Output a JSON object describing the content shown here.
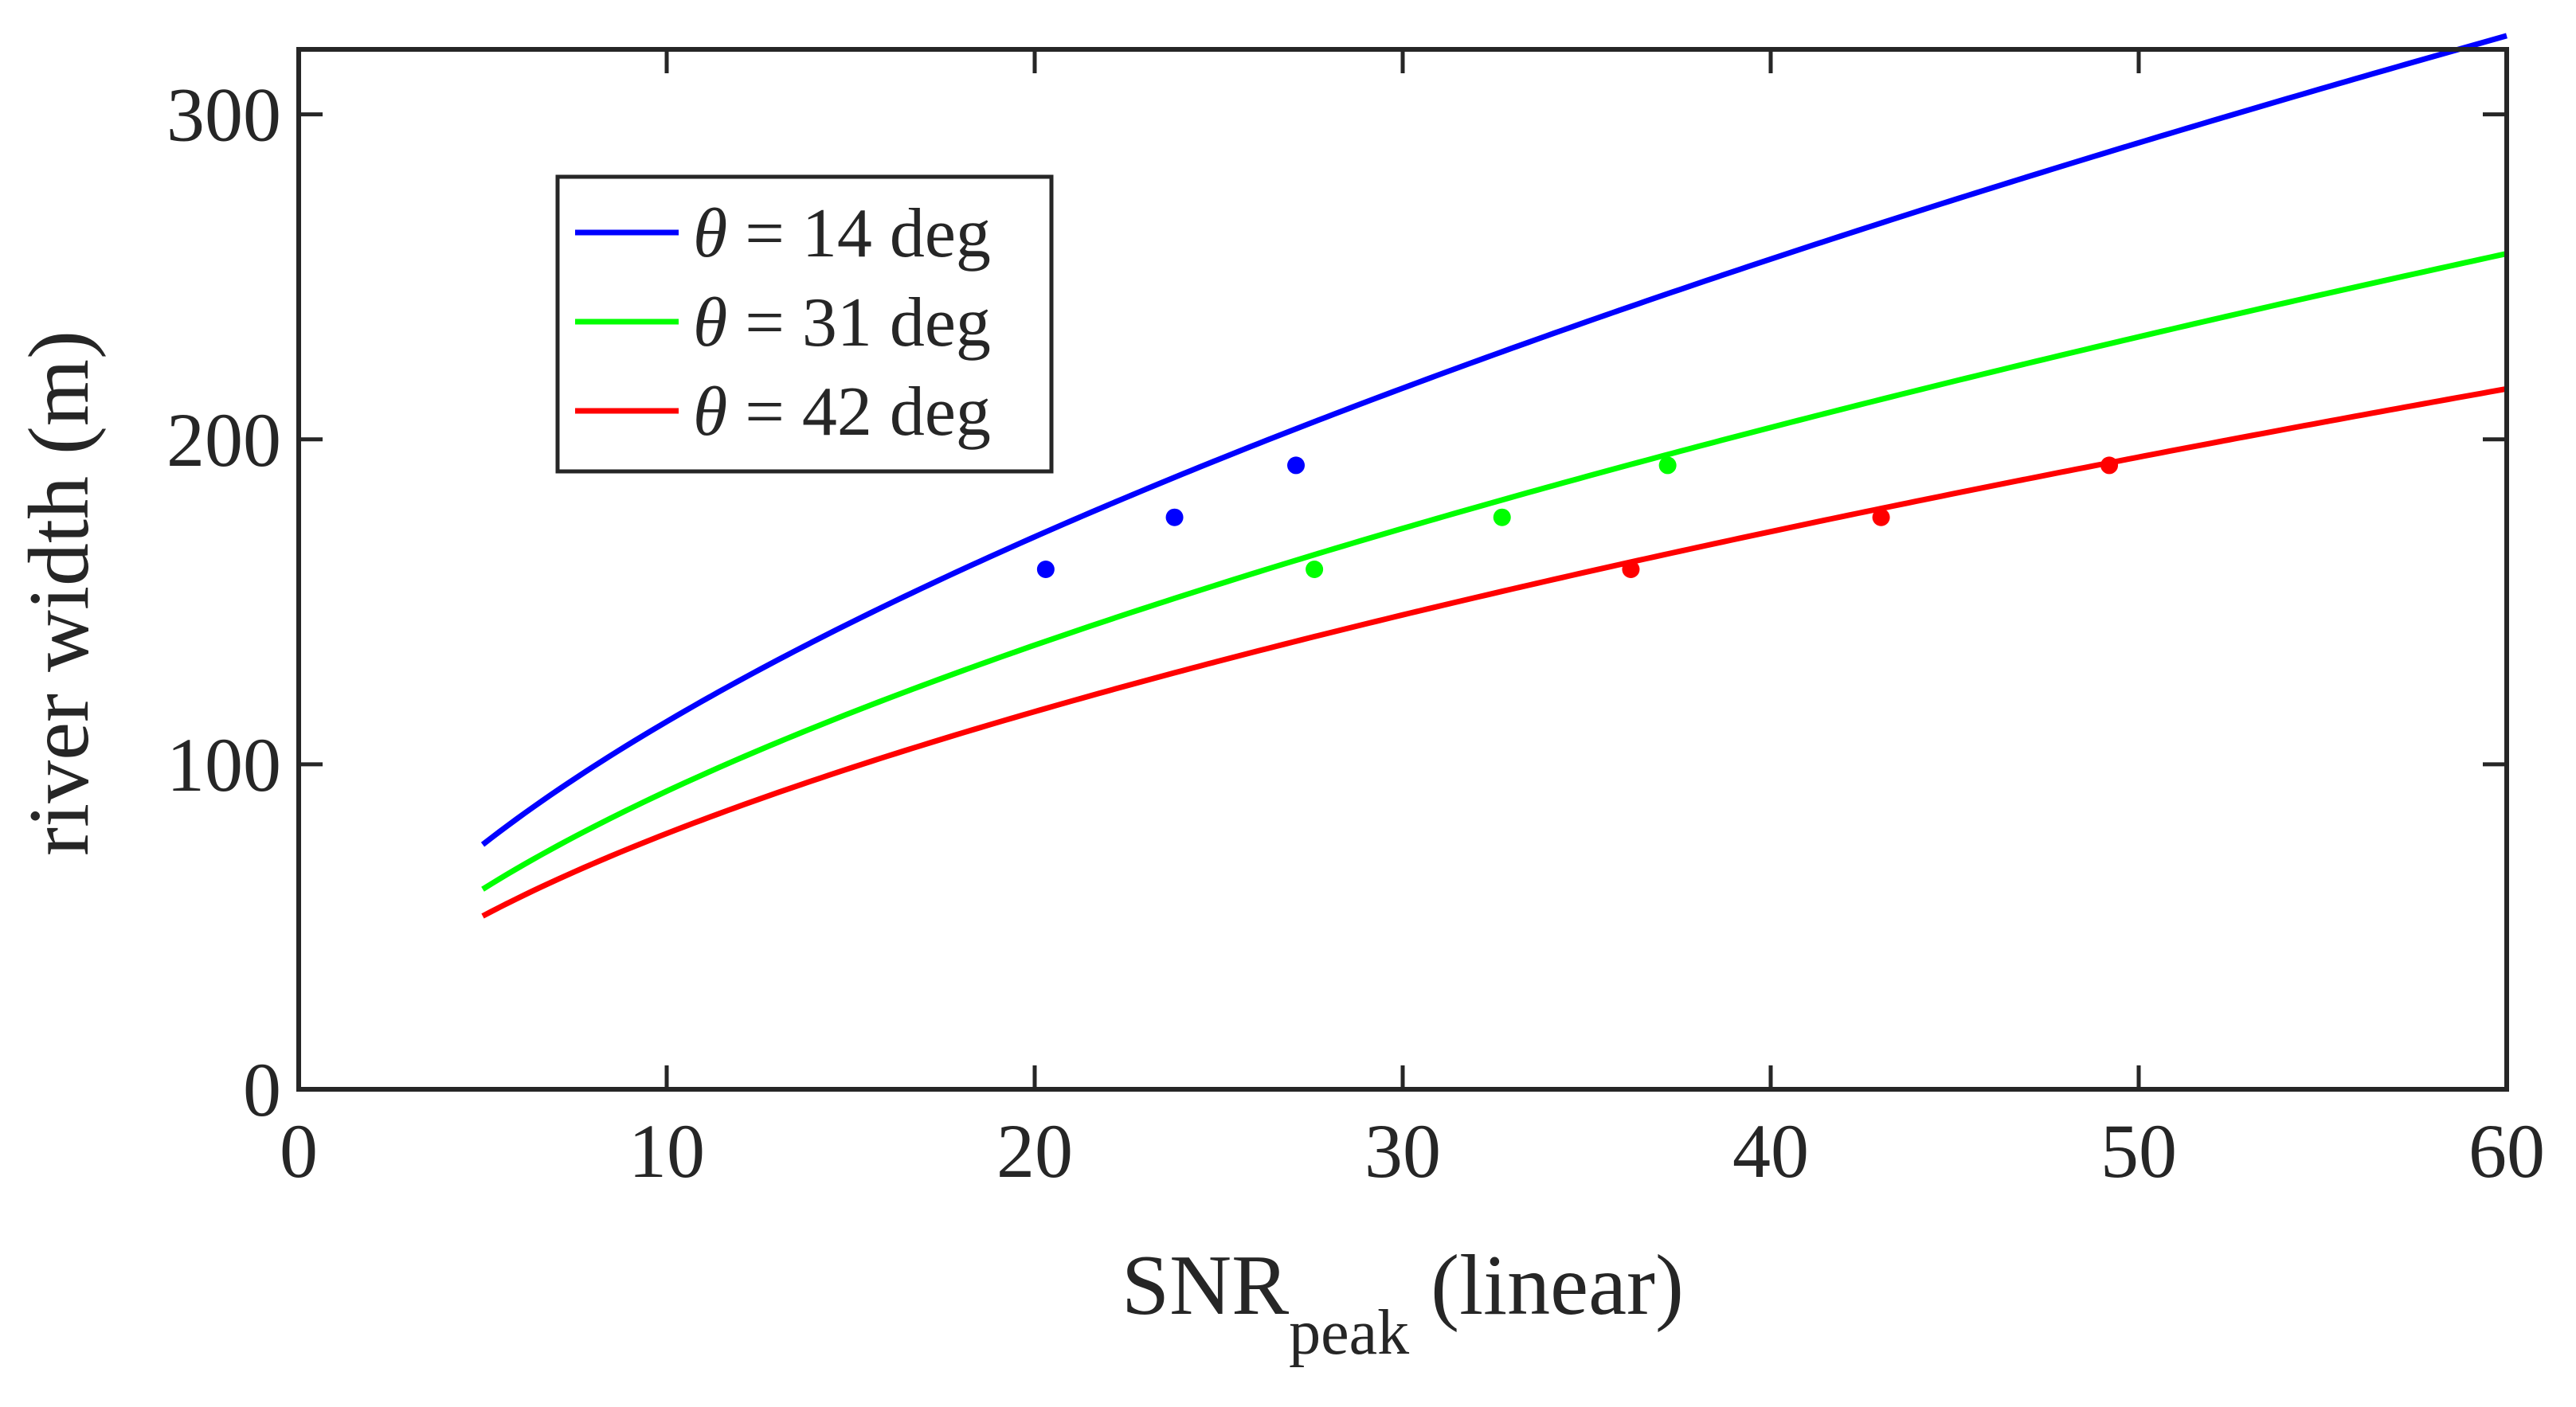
{
  "chart_data": {
    "type": "line",
    "title": "",
    "xlabel": {
      "main": "SNR",
      "subscript": "peak",
      "suffix": " (linear)"
    },
    "ylabel": "river width (m)",
    "xlim": [
      0,
      60
    ],
    "ylim": [
      0,
      320
    ],
    "xticks": [
      0,
      10,
      20,
      30,
      40,
      50,
      60
    ],
    "yticks": [
      0,
      100,
      200,
      300
    ],
    "xtick_labels": [
      "0",
      "10",
      "20",
      "30",
      "40",
      "50",
      "60"
    ],
    "ytick_labels": [
      "0",
      "100",
      "200",
      "300"
    ],
    "grid": false,
    "legend_position": "top-left",
    "series": [
      {
        "name": "θ = 14 deg",
        "legend": {
          "symbol": "θ",
          "text": " = 14 deg"
        },
        "color": "#0000ff",
        "coefficient": 29.25,
        "exponent": 0.5875,
        "x_range": [
          5,
          60
        ],
        "markers": [
          {
            "x": 20.3,
            "y": 160
          },
          {
            "x": 23.8,
            "y": 176
          },
          {
            "x": 27.1,
            "y": 192
          }
        ]
      },
      {
        "name": "θ = 31 deg",
        "legend": {
          "symbol": "θ",
          "text": " = 31 deg"
        },
        "color": "#00ff00",
        "coefficient": 24.39,
        "exponent": 0.5753,
        "x_range": [
          5,
          60
        ],
        "markers": [
          {
            "x": 27.6,
            "y": 160
          },
          {
            "x": 32.7,
            "y": 176
          },
          {
            "x": 37.2,
            "y": 192
          }
        ]
      },
      {
        "name": "θ = 42 deg",
        "legend": {
          "symbol": "θ",
          "text": " = 42 deg"
        },
        "color": "#ff0000",
        "coefficient": 21.57,
        "exponent": 0.5622,
        "x_range": [
          5,
          60
        ],
        "markers": [
          {
            "x": 36.2,
            "y": 160
          },
          {
            "x": 43.0,
            "y": 176
          },
          {
            "x": 49.2,
            "y": 192
          }
        ]
      }
    ]
  }
}
